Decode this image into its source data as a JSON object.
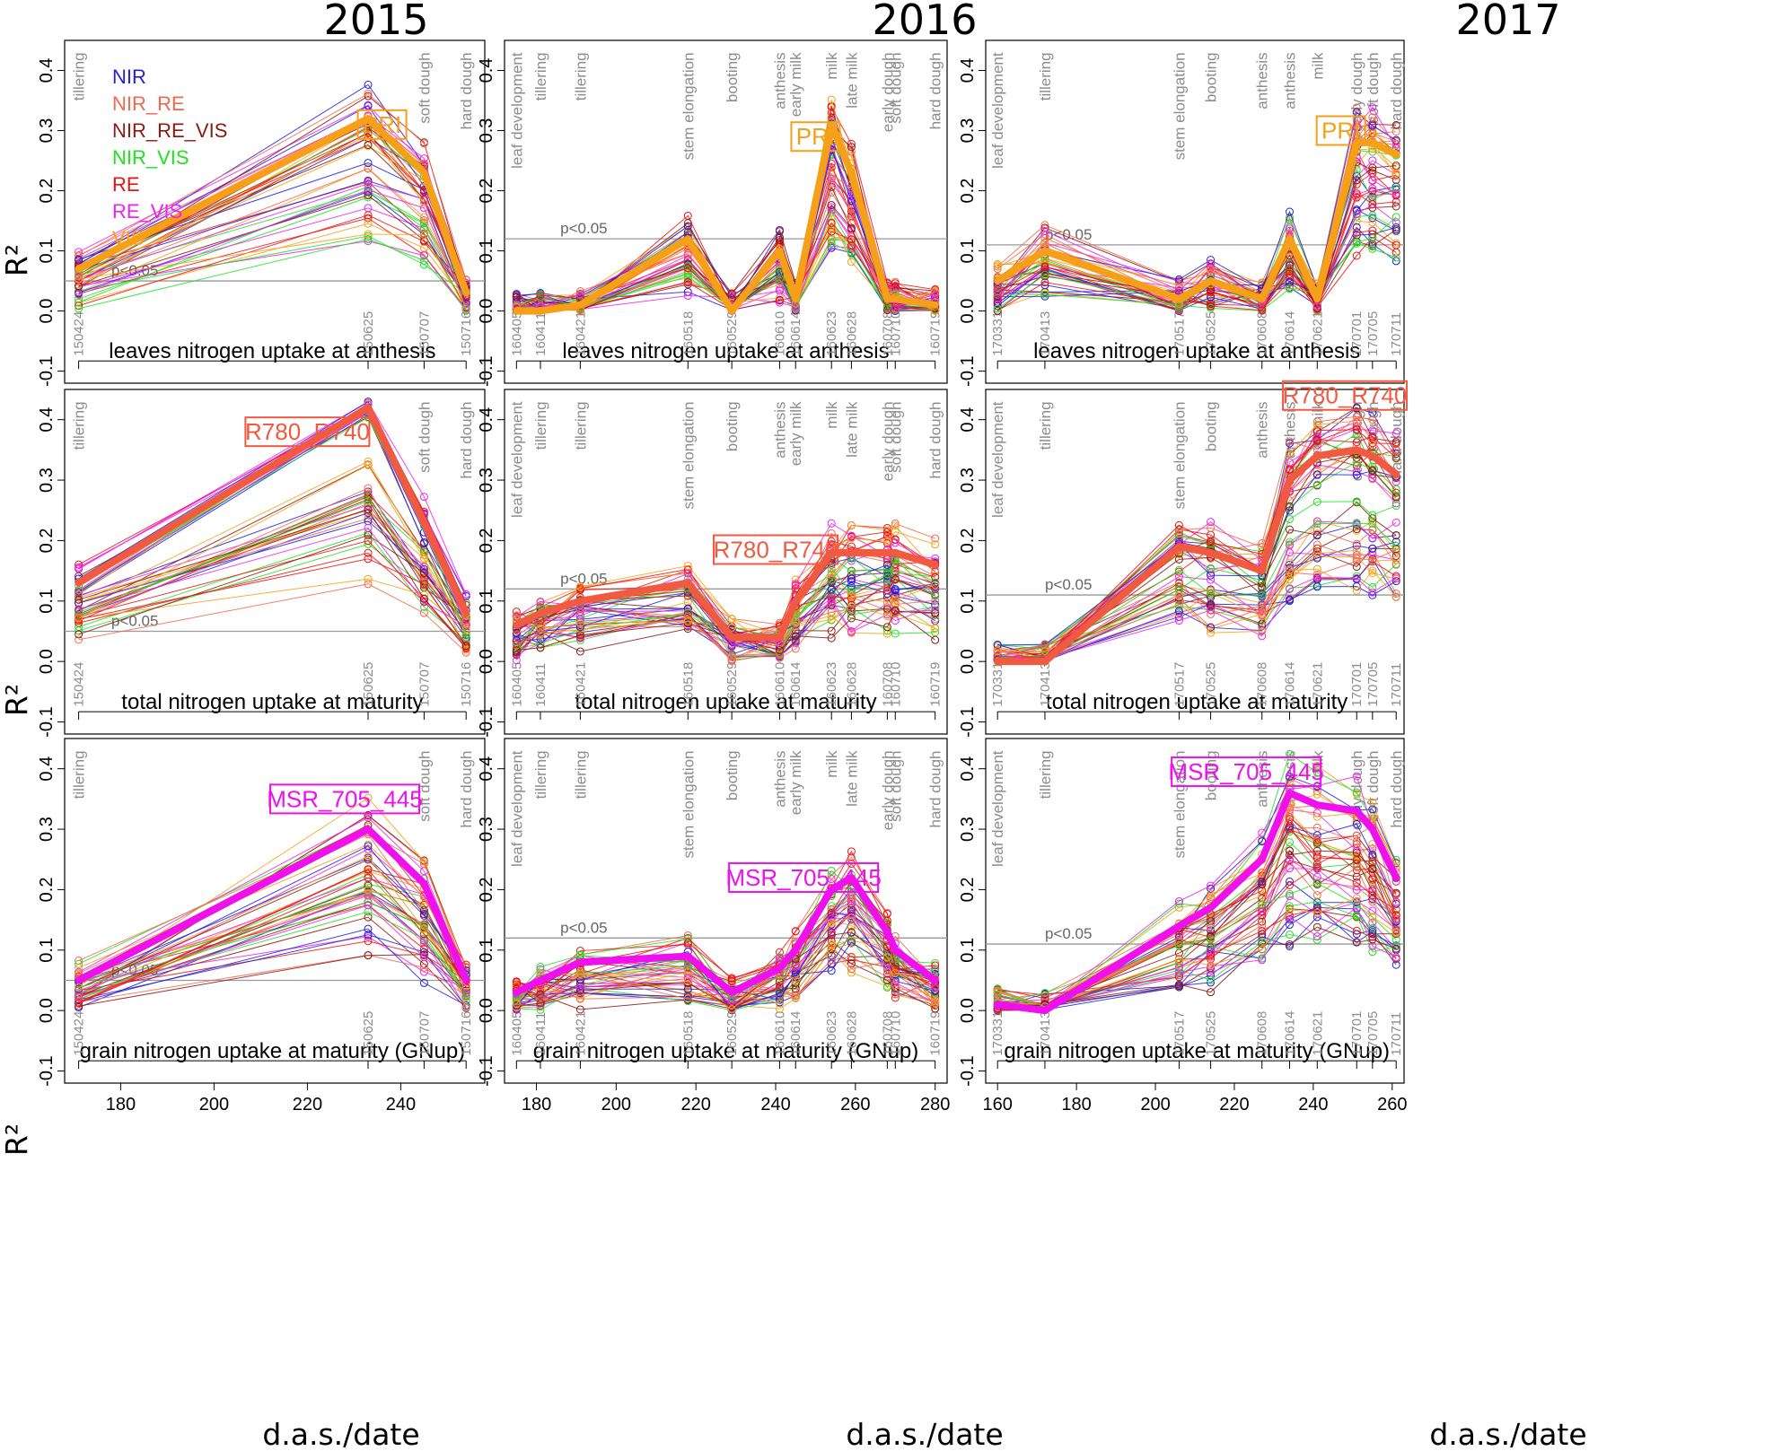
{
  "titles": [
    "2015",
    "2016",
    "2017"
  ],
  "xlabel": "d.a.s./date",
  "ylabel": "R²",
  "legend": [
    {
      "name": "NIR",
      "color": "#1f1fe0"
    },
    {
      "name": "NIR_RE",
      "color": "#f2684f"
    },
    {
      "name": "NIR_RE_VIS",
      "color": "#8b1a10"
    },
    {
      "name": "NIR_VIS",
      "color": "#22e022"
    },
    {
      "name": "RE",
      "color": "#ee1111"
    },
    {
      "name": "RE_VIS",
      "color": "#ef22ef"
    },
    {
      "name": "VIS",
      "color": "#f5a018"
    }
  ],
  "sig_text": "p<0.05",
  "chart_data": {
    "type": "line",
    "ylim": [
      -0.12,
      0.45
    ],
    "yticks": [
      -0.1,
      0.0,
      0.1,
      0.2,
      0.3,
      0.4
    ],
    "years": [
      {
        "year": "2015",
        "xlim": [
          168,
          258
        ],
        "xticks": [
          180,
          200,
          220,
          240
        ],
        "dates": [
          {
            "x": 171,
            "date": "150424"
          },
          {
            "x": 233,
            "date": "150625"
          },
          {
            "x": 245,
            "date": "150707"
          },
          {
            "x": 254,
            "date": "150716"
          }
        ],
        "stages": [
          {
            "x": 171,
            "label": "tillering"
          },
          {
            "x": 245,
            "label": "soft dough"
          },
          {
            "x": 254,
            "label": "hard dough"
          }
        ],
        "sig": 0.05
      },
      {
        "year": "2016",
        "xlim": [
          172,
          283
        ],
        "xticks": [
          180,
          200,
          220,
          240,
          260,
          280
        ],
        "dates": [
          {
            "x": 175,
            "date": "160405"
          },
          {
            "x": 181,
            "date": "160411"
          },
          {
            "x": 191,
            "date": "160421"
          },
          {
            "x": 218,
            "date": "160518"
          },
          {
            "x": 229,
            "date": "160529"
          },
          {
            "x": 241,
            "date": "160610"
          },
          {
            "x": 245,
            "date": "160614"
          },
          {
            "x": 254,
            "date": "160623"
          },
          {
            "x": 259,
            "date": "160628"
          },
          {
            "x": 268,
            "date": "160708"
          },
          {
            "x": 270,
            "date": "160710"
          },
          {
            "x": 280,
            "date": "160719"
          }
        ],
        "stages": [
          {
            "x": 175,
            "label": "leaf development"
          },
          {
            "x": 181,
            "label": "tillering"
          },
          {
            "x": 191,
            "label": "tillering"
          },
          {
            "x": 218,
            "label": "stem elongation"
          },
          {
            "x": 229,
            "label": "booting"
          },
          {
            "x": 241,
            "label": "anthesis"
          },
          {
            "x": 245,
            "label": "early milk"
          },
          {
            "x": 254,
            "label": "milk"
          },
          {
            "x": 259,
            "label": "late milk"
          },
          {
            "x": 268,
            "label": "early dough"
          },
          {
            "x": 270,
            "label": "soft dough"
          },
          {
            "x": 280,
            "label": "hard dough"
          }
        ],
        "sig": 0.12
      },
      {
        "year": "2017",
        "xlim": [
          157,
          263
        ],
        "xticks": [
          160,
          180,
          200,
          220,
          240,
          260
        ],
        "dates": [
          {
            "x": 160,
            "date": "170331"
          },
          {
            "x": 172,
            "date": "170413"
          },
          {
            "x": 206,
            "date": "170517"
          },
          {
            "x": 214,
            "date": "170525"
          },
          {
            "x": 227,
            "date": "170608"
          },
          {
            "x": 234,
            "date": "170614"
          },
          {
            "x": 241,
            "date": "170621"
          },
          {
            "x": 251,
            "date": "170701"
          },
          {
            "x": 255,
            "date": "170705"
          },
          {
            "x": 261,
            "date": "170711"
          }
        ],
        "stages": [
          {
            "x": 160,
            "label": "leaf development"
          },
          {
            "x": 172,
            "label": "tillering"
          },
          {
            "x": 206,
            "label": "stem elongation"
          },
          {
            "x": 214,
            "label": "booting"
          },
          {
            "x": 227,
            "label": "anthesis"
          },
          {
            "x": 234,
            "label": "anthesis"
          },
          {
            "x": 241,
            "label": "milk"
          },
          {
            "x": 251,
            "label": "early dough"
          },
          {
            "x": 255,
            "label": "soft dough"
          },
          {
            "x": 261,
            "label": "hard dough"
          }
        ],
        "sig": 0.11
      }
    ],
    "rows": [
      {
        "trait": "leaves nitrogen uptake at anthesis",
        "highlights": [
          {
            "index": "PRI",
            "color": "#f5a018",
            "values": [
              0.07,
              0.32,
              0.23,
              0.03
            ],
            "label_at": [
              236,
              0.31
            ]
          },
          {
            "index": "PRI",
            "color": "#f5a018",
            "values": [
              0.0,
              0.0,
              0.01,
              0.12,
              0.0,
              0.1,
              0.02,
              0.31,
              0.23,
              0.02,
              0.02,
              0.01
            ],
            "label_at": [
              250,
              0.29
            ]
          },
          {
            "index": "PRI",
            "color": "#f5a018",
            "values": [
              0.05,
              0.1,
              0.02,
              0.05,
              0.02,
              0.12,
              0.02,
              0.28,
              0.28,
              0.26
            ],
            "label_at": [
              247,
              0.3
            ]
          }
        ]
      },
      {
        "trait": "total nitrogen uptake at maturity",
        "highlights": [
          {
            "index": "R780_R740",
            "color": "#f05a40",
            "values": [
              0.13,
              0.42,
              0.23,
              0.08
            ],
            "label_at": [
              220,
              0.38
            ]
          },
          {
            "index": "R780_R740",
            "color": "#f05a40",
            "values": [
              0.06,
              0.08,
              0.1,
              0.13,
              0.04,
              0.04,
              0.1,
              0.18,
              0.18,
              0.18,
              0.18,
              0.16
            ],
            "label_at": [
              240,
              0.185
            ]
          },
          {
            "index": "R780_R740",
            "color": "#f05a40",
            "values": [
              0.0,
              0.0,
              0.19,
              0.18,
              0.15,
              0.3,
              0.34,
              0.35,
              0.34,
              0.31
            ],
            "label_at": [
              248,
              0.44
            ]
          }
        ]
      },
      {
        "trait": "grain nitrogen uptake at maturity (GNup)",
        "highlights": [
          {
            "index": "MSR_705_445",
            "color": "#ee11ee",
            "values": [
              0.05,
              0.3,
              0.21,
              0.05
            ],
            "label_at": [
              228,
              0.35
            ]
          },
          {
            "index": "MSR_705_445",
            "color": "#ee11ee",
            "values": [
              0.03,
              0.05,
              0.08,
              0.09,
              0.03,
              0.07,
              0.1,
              0.2,
              0.22,
              0.13,
              0.1,
              0.05
            ],
            "label_at": [
              247,
              0.22
            ]
          },
          {
            "index": "MSR_705_445",
            "color": "#ee11ee",
            "values": [
              0.01,
              0.0,
              0.14,
              0.17,
              0.25,
              0.36,
              0.34,
              0.33,
              0.3,
              0.22
            ],
            "label_at": [
              223,
              0.395
            ]
          }
        ]
      }
    ]
  }
}
